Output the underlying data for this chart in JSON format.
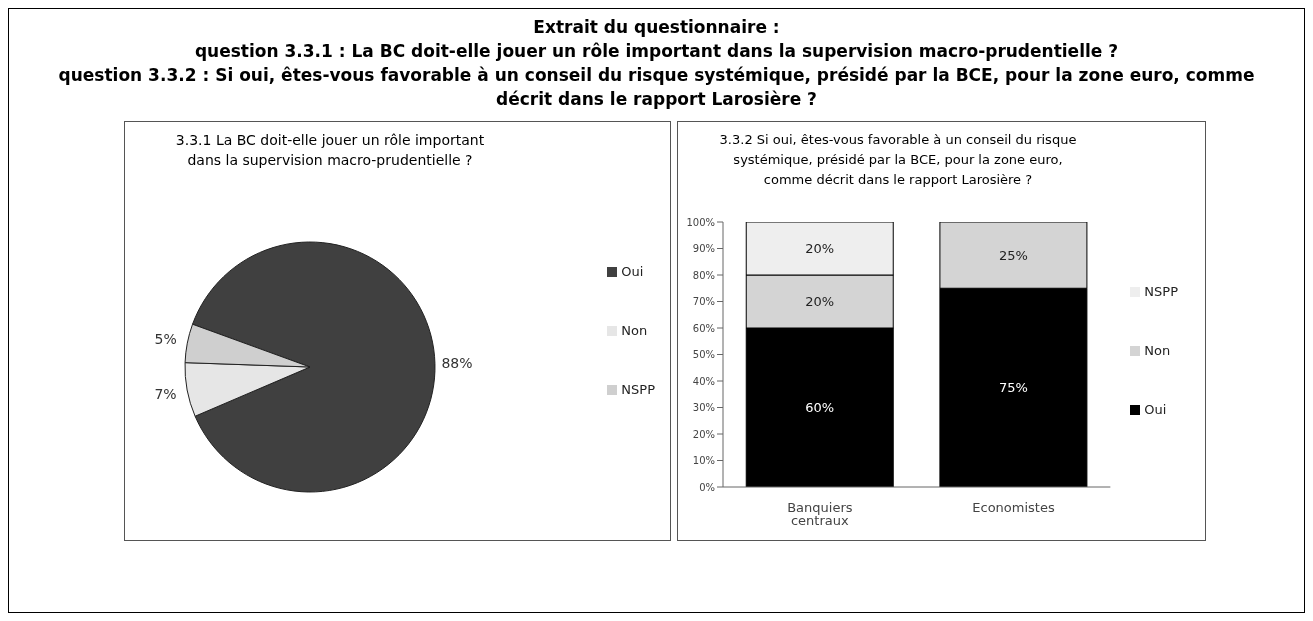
{
  "chart_data": [
    {
      "type": "other",
      "title": "Extrait du questionnaire :",
      "annotations": [
        "question 3.3.1 : La BC doit-elle jouer un rôle important dans la supervision macro-prudentielle ?",
        "question 3.3.2 : Si oui, êtes-vous favorable à un conseil du risque systémique, présidé par la BCE, pour la zone euro, comme décrit dans le rapport Larosière ?"
      ]
    },
    {
      "type": "pie",
      "title": "3.3.1 La BC doit-elle jouer un rôle important dans la supervision macro-prudentielle ?",
      "categories": [
        "Oui",
        "Non",
        "NSPP"
      ],
      "values": [
        88,
        7,
        5
      ],
      "colors": [
        "#404040",
        "#e6e6e6",
        "#cfcfcf"
      ],
      "value_labels": [
        "88%",
        "7%",
        "5%"
      ],
      "legend": "right"
    },
    {
      "type": "bar",
      "title": "3.3.2 Si oui, êtes-vous favorable à un conseil du risque systémique, présidé par la BCE, pour la zone euro, comme décrit dans le rapport Larosière ?",
      "categories": [
        "Banquiers centraux",
        "Economistes"
      ],
      "stacked": true,
      "legend": "right",
      "series": [
        {
          "name": "Oui",
          "color": "#000000",
          "values": [
            60,
            75
          ],
          "value_labels": [
            "60%",
            "75%"
          ]
        },
        {
          "name": "Non",
          "color": "#d4d4d4",
          "values": [
            20,
            25
          ],
          "value_labels": [
            "20%",
            "25%"
          ]
        },
        {
          "name": "NSPP",
          "color": "#eeeeee",
          "values": [
            20,
            null
          ],
          "value_labels": [
            "20%",
            null
          ]
        }
      ],
      "ylim": [
        0,
        100
      ],
      "yticks": [
        {
          "value": 0,
          "label": "0%"
        },
        {
          "value": 10,
          "label": "10%"
        },
        {
          "value": 20,
          "label": "20%"
        },
        {
          "value": 30,
          "label": "30%"
        },
        {
          "value": 40,
          "label": "40%"
        },
        {
          "value": 50,
          "label": "50%"
        },
        {
          "value": 60,
          "label": "60%"
        },
        {
          "value": 70,
          "label": "70%"
        },
        {
          "value": 80,
          "label": "80%"
        },
        {
          "value": 90,
          "label": "90%"
        },
        {
          "value": 100,
          "label": "100%"
        }
      ]
    }
  ]
}
